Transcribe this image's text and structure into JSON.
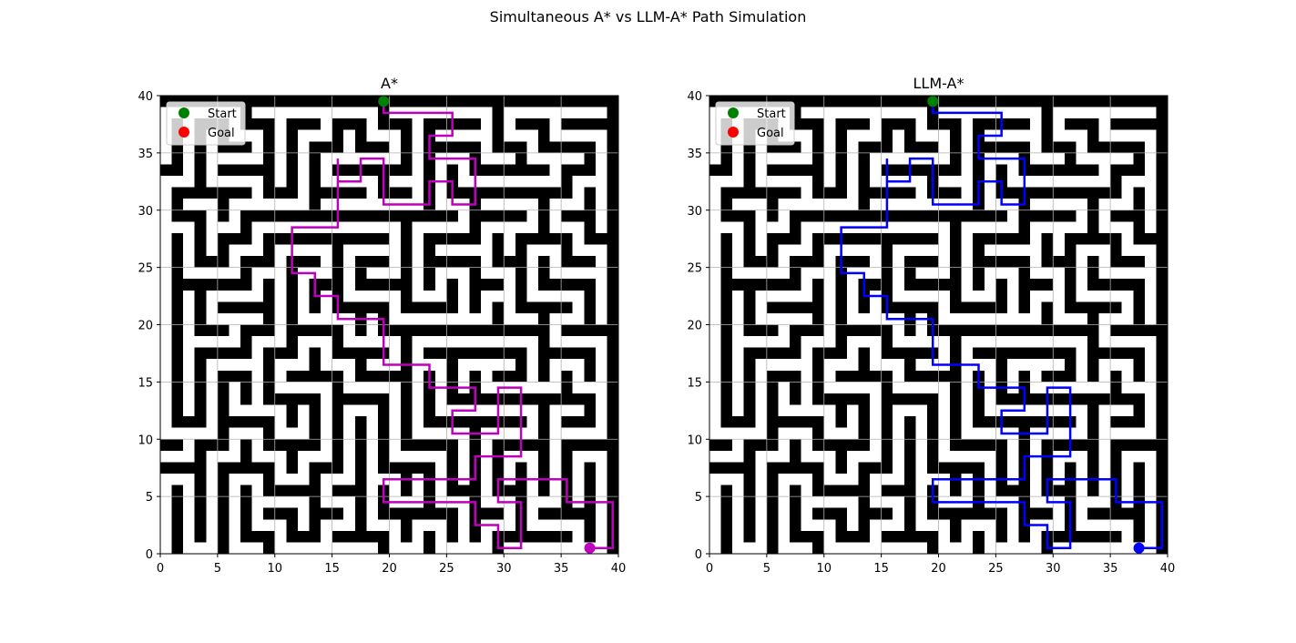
{
  "figure": {
    "title": "Simultaneous A* vs LLM-A* Path Simulation"
  },
  "chart_data": [
    {
      "type": "line",
      "title": "A*",
      "xlabel": "",
      "ylabel": "",
      "xlim": [
        0,
        40
      ],
      "ylim": [
        0,
        40
      ],
      "xticks": [
        0,
        5,
        10,
        15,
        20,
        25,
        30,
        35,
        40
      ],
      "yticks": [
        0,
        5,
        10,
        15,
        20,
        25,
        30,
        35,
        40
      ],
      "grid": true,
      "background": "binary maze, 40x40 cells, black walls on white corridors",
      "legend": {
        "location": "upper left",
        "entries": [
          {
            "label": "Start",
            "color": "#008000",
            "marker": "circle"
          },
          {
            "label": "Goal",
            "color": "#ff0000",
            "marker": "circle"
          }
        ]
      },
      "markers": [
        {
          "label": "Start",
          "x": 19.5,
          "y": 39.5,
          "color": "#008000"
        },
        {
          "label": "current",
          "x": 37.5,
          "y": 0.5,
          "color": "#bf00bf"
        }
      ],
      "path_color": "#bf00bf",
      "path": [
        [
          19.5,
          39.5
        ],
        [
          19.5,
          38.5
        ],
        [
          25.5,
          38.5
        ],
        [
          25.5,
          36.5
        ],
        [
          23.5,
          36.5
        ],
        [
          23.5,
          34.5
        ],
        [
          27.5,
          34.5
        ],
        [
          27.5,
          30.5
        ],
        [
          25.5,
          30.5
        ],
        [
          25.5,
          32.5
        ],
        [
          23.5,
          32.5
        ],
        [
          23.5,
          30.5
        ],
        [
          19.5,
          30.5
        ],
        [
          19.5,
          34.5
        ],
        [
          17.5,
          34.5
        ],
        [
          17.5,
          32.5
        ],
        [
          15.5,
          32.5
        ],
        [
          15.5,
          34.5
        ],
        [
          15.5,
          28.5
        ],
        [
          11.5,
          28.5
        ],
        [
          11.5,
          24.5
        ],
        [
          13.5,
          24.5
        ],
        [
          13.5,
          22.5
        ],
        [
          15.5,
          22.5
        ],
        [
          15.5,
          20.5
        ],
        [
          19.5,
          20.5
        ],
        [
          19.5,
          16.5
        ],
        [
          23.5,
          16.5
        ],
        [
          23.5,
          14.5
        ],
        [
          27.5,
          14.5
        ],
        [
          27.5,
          12.5
        ],
        [
          25.5,
          12.5
        ],
        [
          25.5,
          10.5
        ],
        [
          29.5,
          10.5
        ],
        [
          29.5,
          14.5
        ],
        [
          31.5,
          14.5
        ],
        [
          31.5,
          8.5
        ],
        [
          27.5,
          8.5
        ],
        [
          27.5,
          6.5
        ],
        [
          19.5,
          6.5
        ],
        [
          19.5,
          4.5
        ],
        [
          27.5,
          4.5
        ],
        [
          27.5,
          2.5
        ],
        [
          29.5,
          2.5
        ],
        [
          29.5,
          0.5
        ],
        [
          31.5,
          0.5
        ],
        [
          31.5,
          4.5
        ],
        [
          29.5,
          4.5
        ],
        [
          29.5,
          6.5
        ],
        [
          35.5,
          6.5
        ],
        [
          35.5,
          4.5
        ],
        [
          39.5,
          4.5
        ],
        [
          39.5,
          0.5
        ],
        [
          37.5,
          0.5
        ]
      ]
    },
    {
      "type": "line",
      "title": "LLM-A*",
      "xlabel": "",
      "ylabel": "",
      "xlim": [
        0,
        40
      ],
      "ylim": [
        0,
        40
      ],
      "xticks": [
        0,
        5,
        10,
        15,
        20,
        25,
        30,
        35,
        40
      ],
      "yticks": [
        0,
        5,
        10,
        15,
        20,
        25,
        30,
        35,
        40
      ],
      "grid": true,
      "background": "binary maze, 40x40 cells, black walls on white corridors",
      "legend": {
        "location": "upper left",
        "entries": [
          {
            "label": "Start",
            "color": "#008000",
            "marker": "circle"
          },
          {
            "label": "Goal",
            "color": "#ff0000",
            "marker": "circle"
          }
        ]
      },
      "markers": [
        {
          "label": "Start",
          "x": 19.5,
          "y": 39.5,
          "color": "#008000"
        },
        {
          "label": "current",
          "x": 37.5,
          "y": 0.5,
          "color": "#0000ff"
        }
      ],
      "path_color": "#0000ff",
      "path": [
        [
          19.5,
          39.5
        ],
        [
          19.5,
          38.5
        ],
        [
          25.5,
          38.5
        ],
        [
          25.5,
          36.5
        ],
        [
          23.5,
          36.5
        ],
        [
          23.5,
          34.5
        ],
        [
          27.5,
          34.5
        ],
        [
          27.5,
          30.5
        ],
        [
          25.5,
          30.5
        ],
        [
          25.5,
          32.5
        ],
        [
          23.5,
          32.5
        ],
        [
          23.5,
          30.5
        ],
        [
          19.5,
          30.5
        ],
        [
          19.5,
          34.5
        ],
        [
          17.5,
          34.5
        ],
        [
          17.5,
          32.5
        ],
        [
          15.5,
          32.5
        ],
        [
          15.5,
          34.5
        ],
        [
          15.5,
          28.5
        ],
        [
          11.5,
          28.5
        ],
        [
          11.5,
          24.5
        ],
        [
          13.5,
          24.5
        ],
        [
          13.5,
          22.5
        ],
        [
          15.5,
          22.5
        ],
        [
          15.5,
          20.5
        ],
        [
          19.5,
          20.5
        ],
        [
          19.5,
          16.5
        ],
        [
          23.5,
          16.5
        ],
        [
          23.5,
          14.5
        ],
        [
          27.5,
          14.5
        ],
        [
          27.5,
          12.5
        ],
        [
          25.5,
          12.5
        ],
        [
          25.5,
          10.5
        ],
        [
          29.5,
          10.5
        ],
        [
          29.5,
          14.5
        ],
        [
          31.5,
          14.5
        ],
        [
          31.5,
          8.5
        ],
        [
          27.5,
          8.5
        ],
        [
          27.5,
          6.5
        ],
        [
          19.5,
          6.5
        ],
        [
          19.5,
          4.5
        ],
        [
          27.5,
          4.5
        ],
        [
          27.5,
          2.5
        ],
        [
          29.5,
          2.5
        ],
        [
          29.5,
          0.5
        ],
        [
          31.5,
          0.5
        ],
        [
          31.5,
          4.5
        ],
        [
          29.5,
          4.5
        ],
        [
          29.5,
          6.5
        ],
        [
          35.5,
          6.5
        ],
        [
          35.5,
          4.5
        ],
        [
          39.5,
          4.5
        ],
        [
          39.5,
          0.5
        ],
        [
          37.5,
          0.5
        ]
      ]
    }
  ]
}
